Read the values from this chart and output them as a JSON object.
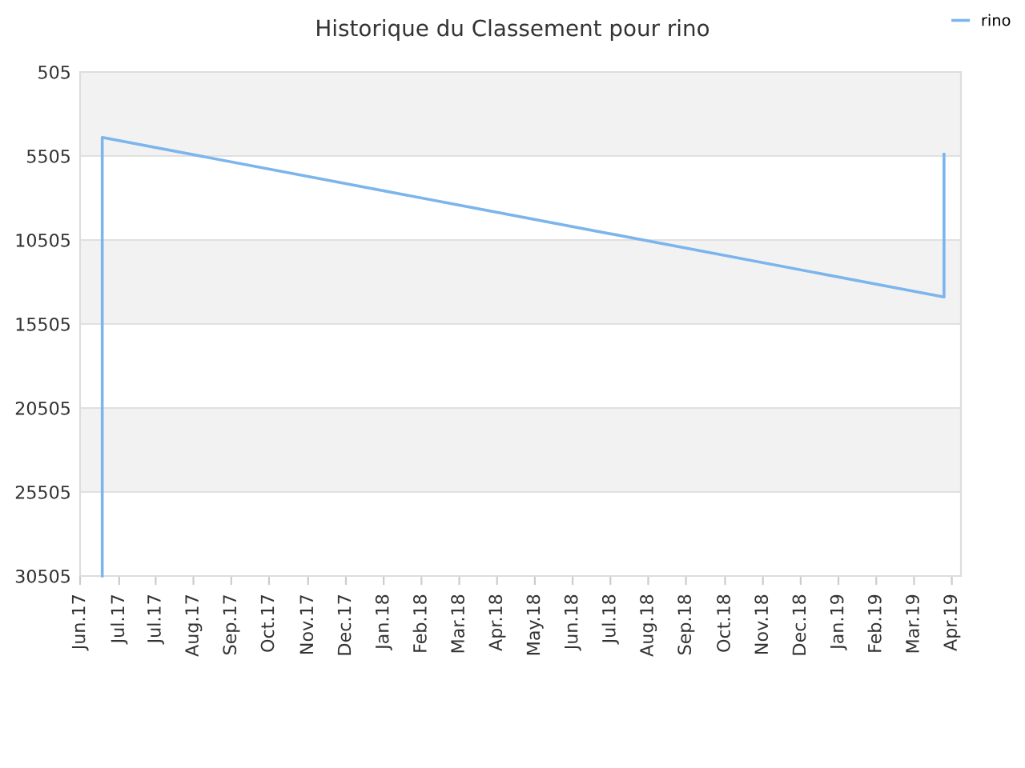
{
  "chart_data": {
    "type": "line",
    "title": "Historique du Classement pour rino",
    "series": [
      {
        "name": "rino",
        "color": "#7cb5ec",
        "x": [
          "2017-06-18",
          "2017-06-18",
          "2019-03-26",
          "2019-03-26"
        ],
        "values": [
          30505,
          4400,
          13900,
          5400
        ]
      }
    ],
    "xlim": [
      "2017-06-01",
      "2019-04-08"
    ],
    "xticks": [
      {
        "value": "2017-06-01",
        "label": "Jun.17"
      },
      {
        "value": "2017-07-01",
        "label": "Jul.17"
      },
      {
        "value": "2017-07-29",
        "label": "Jul.17"
      },
      {
        "value": "2017-08-27",
        "label": "Aug.17"
      },
      {
        "value": "2017-09-25",
        "label": "Sep.17"
      },
      {
        "value": "2017-10-24",
        "label": "Oct.17"
      },
      {
        "value": "2017-11-23",
        "label": "Nov.17"
      },
      {
        "value": "2017-12-22",
        "label": "Dec.17"
      },
      {
        "value": "2018-01-20",
        "label": "Jan.18"
      },
      {
        "value": "2018-02-18",
        "label": "Feb.18"
      },
      {
        "value": "2018-03-19",
        "label": "Mar.18"
      },
      {
        "value": "2018-04-17",
        "label": "Apr.18"
      },
      {
        "value": "2018-05-16",
        "label": "May.18"
      },
      {
        "value": "2018-06-14",
        "label": "Jun.18"
      },
      {
        "value": "2018-07-13",
        "label": "Jul.18"
      },
      {
        "value": "2018-08-11",
        "label": "Aug.18"
      },
      {
        "value": "2018-09-09",
        "label": "Sep.18"
      },
      {
        "value": "2018-10-09",
        "label": "Oct.18"
      },
      {
        "value": "2018-11-07",
        "label": "Nov.18"
      },
      {
        "value": "2018-12-06",
        "label": "Dec.18"
      },
      {
        "value": "2019-01-04",
        "label": "Jan.19"
      },
      {
        "value": "2019-02-02",
        "label": "Feb.19"
      },
      {
        "value": "2019-03-03",
        "label": "Mar.19"
      },
      {
        "value": "2019-04-01",
        "label": "Apr.19"
      }
    ],
    "ylim": [
      30505,
      505
    ],
    "yticks": [
      505,
      5505,
      10505,
      15505,
      20505,
      25505,
      30505
    ],
    "bands": [
      {
        "axis": "y",
        "from": 505,
        "to": 5505,
        "color": "#f2f2f2"
      },
      {
        "axis": "y",
        "from": 10505,
        "to": 15505,
        "color": "#f2f2f2"
      },
      {
        "axis": "y",
        "from": 20505,
        "to": 25505,
        "color": "#f2f2f2"
      }
    ],
    "grid": "y",
    "legend": "top right",
    "marker": "none",
    "line_style": "solid"
  }
}
